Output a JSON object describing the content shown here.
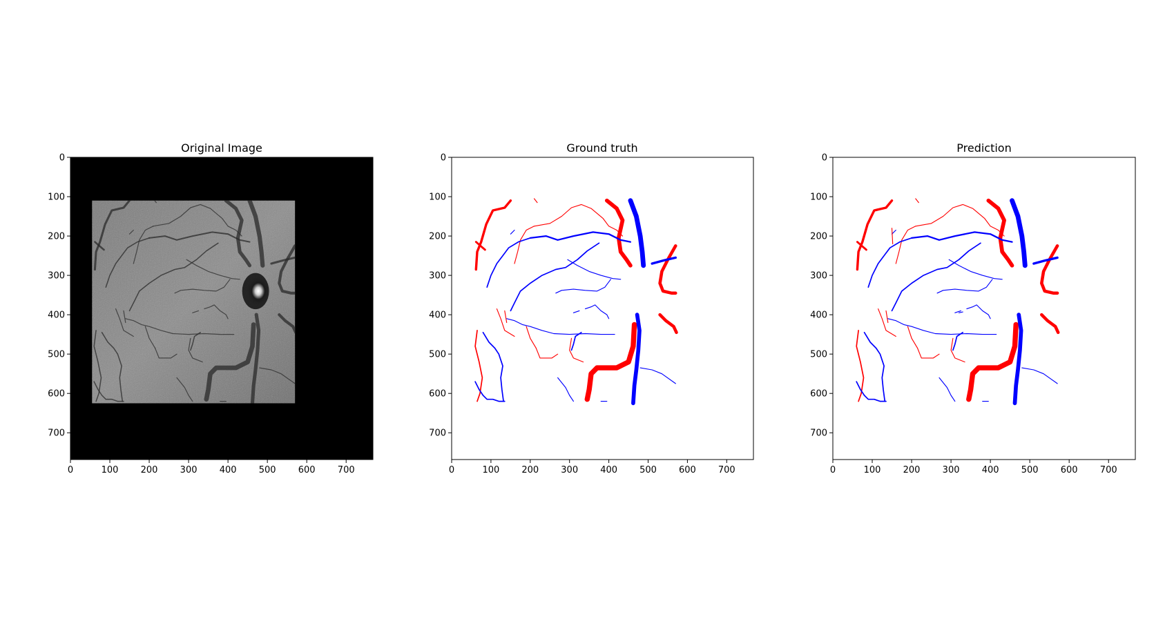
{
  "colors": {
    "artery": "#ff0000",
    "vein": "#0000ff",
    "fundus_bg": "#000000",
    "axes": "#000000"
  },
  "panels": [
    {
      "id": "original",
      "title": "Original Image",
      "kind": "grayscale-photo",
      "content_box_data_units": {
        "x0": 55,
        "x1": 570,
        "y0": 110,
        "y1": 625
      },
      "optic_disc_center_data_units": {
        "x": 470,
        "y": 340
      }
    },
    {
      "id": "ground_truth",
      "title": "Ground truth",
      "kind": "vessel-map"
    },
    {
      "id": "prediction",
      "title": "Prediction",
      "kind": "vessel-map"
    }
  ],
  "axes": {
    "xlim": [
      0,
      768
    ],
    "ylim": [
      768,
      0
    ],
    "xticks": [
      "0",
      "100",
      "200",
      "300",
      "400",
      "500",
      "600",
      "700"
    ],
    "yticks": [
      "0",
      "100",
      "200",
      "300",
      "400",
      "500",
      "600",
      "700"
    ]
  },
  "vessels": {
    "arteries": [
      {
        "w": 6,
        "pts": [
          [
            150,
            110
          ],
          [
            135,
            128
          ],
          [
            105,
            135
          ],
          [
            88,
            170
          ],
          [
            75,
            215
          ],
          [
            65,
            240
          ],
          [
            62,
            285
          ]
        ]
      },
      {
        "w": 5,
        "pts": [
          [
            85,
            235
          ],
          [
            70,
            222
          ],
          [
            62,
            215
          ]
        ]
      },
      {
        "w": 2,
        "pts": [
          [
            210,
            175
          ],
          [
            250,
            168
          ],
          [
            280,
            150
          ],
          [
            305,
            128
          ],
          [
            330,
            120
          ],
          [
            355,
            130
          ],
          [
            385,
            155
          ],
          [
            400,
            175
          ],
          [
            420,
            185
          ],
          [
            435,
            200
          ]
        ]
      },
      {
        "w": 2,
        "pts": [
          [
            210,
            175
          ],
          [
            190,
            185
          ],
          [
            175,
            210
          ],
          [
            168,
            240
          ],
          [
            160,
            270
          ]
        ]
      },
      {
        "w": 10,
        "pts": [
          [
            395,
            110
          ],
          [
            420,
            130
          ],
          [
            435,
            160
          ],
          [
            425,
            205
          ],
          [
            430,
            240
          ],
          [
            445,
            260
          ],
          [
            455,
            275
          ]
        ]
      },
      {
        "w": 8,
        "pts": [
          [
            570,
            225
          ],
          [
            550,
            260
          ],
          [
            535,
            290
          ],
          [
            530,
            320
          ],
          [
            538,
            340
          ],
          [
            560,
            345
          ],
          [
            570,
            345
          ]
        ]
      },
      {
        "w": 8,
        "pts": [
          [
            530,
            400
          ],
          [
            545,
            415
          ],
          [
            565,
            430
          ],
          [
            572,
            445
          ]
        ]
      },
      {
        "w": 13,
        "pts": [
          [
            465,
            425
          ],
          [
            462,
            480
          ],
          [
            450,
            520
          ],
          [
            420,
            535
          ],
          [
            370,
            535
          ],
          [
            355,
            550
          ],
          [
            350,
            590
          ],
          [
            345,
            615
          ]
        ]
      },
      {
        "w": 2,
        "pts": [
          [
            115,
            385
          ],
          [
            125,
            410
          ],
          [
            135,
            440
          ],
          [
            160,
            455
          ]
        ]
      },
      {
        "w": 3,
        "pts": [
          [
            65,
            440
          ],
          [
            60,
            480
          ],
          [
            70,
            520
          ],
          [
            78,
            560
          ],
          [
            72,
            600
          ],
          [
            65,
            620
          ]
        ]
      },
      {
        "w": 2,
        "pts": [
          [
            135,
            390
          ],
          [
            140,
            420
          ]
        ]
      },
      {
        "w": 2,
        "pts": [
          [
            215,
            485
          ],
          [
            225,
            510
          ],
          [
            255,
            510
          ],
          [
            270,
            500
          ]
        ]
      },
      {
        "w": 2,
        "pts": [
          [
            305,
            460
          ],
          [
            300,
            490
          ],
          [
            310,
            510
          ],
          [
            335,
            520
          ]
        ]
      },
      {
        "w": 2,
        "pts": [
          [
            190,
            430
          ],
          [
            200,
            460
          ],
          [
            215,
            485
          ]
        ]
      },
      {
        "w": 2,
        "pts": [
          [
            210,
            105
          ],
          [
            218,
            115
          ]
        ]
      }
    ],
    "veins": [
      {
        "w": 4,
        "pts": [
          [
            200,
            205
          ],
          [
            240,
            200
          ],
          [
            270,
            210
          ],
          [
            310,
            200
          ],
          [
            360,
            190
          ],
          [
            400,
            195
          ],
          [
            430,
            210
          ],
          [
            455,
            215
          ]
        ]
      },
      {
        "w": 12,
        "pts": [
          [
            455,
            110
          ],
          [
            470,
            150
          ],
          [
            480,
            200
          ],
          [
            485,
            240
          ],
          [
            488,
            275
          ]
        ]
      },
      {
        "w": 6,
        "pts": [
          [
            510,
            270
          ],
          [
            540,
            262
          ],
          [
            570,
            255
          ]
        ]
      },
      {
        "w": 3,
        "pts": [
          [
            200,
            205
          ],
          [
            170,
            215
          ],
          [
            145,
            230
          ],
          [
            130,
            250
          ],
          [
            115,
            270
          ],
          [
            100,
            300
          ],
          [
            90,
            330
          ]
        ]
      },
      {
        "w": 2,
        "pts": [
          [
            160,
            185
          ],
          [
            150,
            195
          ]
        ]
      },
      {
        "w": 3,
        "pts": [
          [
            375,
            218
          ],
          [
            345,
            238
          ],
          [
            320,
            260
          ],
          [
            290,
            280
          ],
          [
            265,
            285
          ],
          [
            230,
            300
          ],
          [
            200,
            320
          ],
          [
            175,
            340
          ],
          [
            160,
            370
          ],
          [
            150,
            390
          ]
        ]
      },
      {
        "w": 2,
        "pts": [
          [
            295,
            260
          ],
          [
            320,
            275
          ],
          [
            350,
            290
          ],
          [
            380,
            300
          ],
          [
            410,
            308
          ],
          [
            430,
            310
          ]
        ]
      },
      {
        "w": 2,
        "pts": [
          [
            265,
            345
          ],
          [
            280,
            338
          ],
          [
            310,
            335
          ],
          [
            340,
            338
          ],
          [
            370,
            340
          ],
          [
            390,
            330
          ],
          [
            405,
            310
          ]
        ]
      },
      {
        "w": 2,
        "pts": [
          [
            415,
            450
          ],
          [
            380,
            450
          ],
          [
            340,
            448
          ],
          [
            300,
            450
          ],
          [
            260,
            448
          ],
          [
            230,
            440
          ],
          [
            200,
            430
          ],
          [
            180,
            425
          ],
          [
            160,
            415
          ],
          [
            140,
            410
          ]
        ]
      },
      {
        "w": 3,
        "pts": [
          [
            330,
            445
          ],
          [
            315,
            455
          ],
          [
            310,
            475
          ],
          [
            305,
            490
          ]
        ]
      },
      {
        "w": 10,
        "pts": [
          [
            472,
            400
          ],
          [
            478,
            440
          ],
          [
            475,
            490
          ],
          [
            470,
            540
          ],
          [
            465,
            580
          ],
          [
            462,
            625
          ]
        ]
      },
      {
        "w": 2,
        "pts": [
          [
            340,
            385
          ],
          [
            355,
            380
          ],
          [
            365,
            375
          ],
          [
            380,
            390
          ],
          [
            395,
            400
          ],
          [
            400,
            410
          ]
        ]
      },
      {
        "w": 2,
        "pts": [
          [
            310,
            395
          ],
          [
            325,
            390
          ]
        ]
      },
      {
        "w": 3,
        "pts": [
          [
            60,
            570
          ],
          [
            70,
            590
          ],
          [
            80,
            605
          ],
          [
            90,
            615
          ],
          [
            105,
            615
          ],
          [
            120,
            620
          ],
          [
            135,
            620
          ]
        ]
      },
      {
        "w": 3,
        "pts": [
          [
            80,
            445
          ],
          [
            95,
            470
          ],
          [
            110,
            485
          ],
          [
            120,
            500
          ],
          [
            130,
            530
          ],
          [
            125,
            560
          ],
          [
            128,
            590
          ],
          [
            132,
            620
          ]
        ]
      },
      {
        "w": 2,
        "pts": [
          [
            270,
            560
          ],
          [
            290,
            585
          ],
          [
            300,
            605
          ],
          [
            310,
            620
          ]
        ]
      },
      {
        "w": 2,
        "pts": [
          [
            480,
            535
          ],
          [
            510,
            540
          ],
          [
            535,
            550
          ],
          [
            570,
            575
          ]
        ]
      },
      {
        "w": 2,
        "pts": [
          [
            380,
            620
          ],
          [
            395,
            620
          ]
        ]
      }
    ],
    "prediction_extra": [
      {
        "c": "artery",
        "w": 2,
        "pts": [
          [
            150,
            180
          ],
          [
            152,
            220
          ]
        ]
      },
      {
        "c": "vein",
        "w": 2,
        "pts": [
          [
            320,
            395
          ],
          [
            330,
            393
          ]
        ]
      }
    ]
  }
}
